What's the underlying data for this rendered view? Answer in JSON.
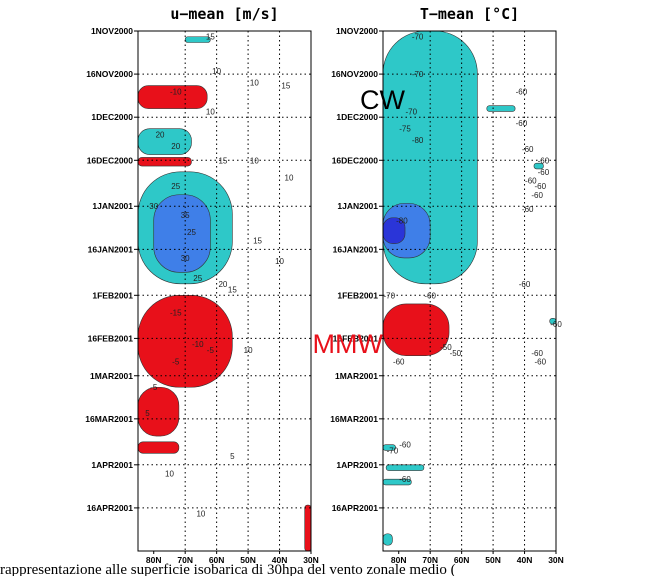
{
  "caption": "rappresentazione alle superficie isobarica di 30hpa del vento zonale medio (",
  "annotations": [
    {
      "label": "CW",
      "color": "#000000",
      "panel": 1,
      "date": "25NOV2000",
      "lat": 78
    },
    {
      "label": "MMW",
      "color": "#e8101a",
      "panel": 1,
      "date": "18FEB2001",
      "lat": 85
    }
  ],
  "chart_data": [
    {
      "type": "heatmap",
      "title": "u−mean [m/s]",
      "x_ticks": [
        "80N",
        "70N",
        "60N",
        "50N",
        "40N",
        "30N"
      ],
      "y_ticks": [
        "1NOV2000",
        "16NOV2000",
        "1DEC2000",
        "16DEC2000",
        "1JAN2001",
        "16JAN2001",
        "1FEB2001",
        "16FEB2001",
        "1MAR2001",
        "16MAR2001",
        "1APR2001",
        "16APR2001"
      ],
      "x_range": [
        85,
        30
      ],
      "y_range": [
        "1NOV2000",
        "1MAY2001"
      ],
      "grid": true,
      "fill_colors": {
        "easterly": "#e8101a",
        "westerly_20": "#2ec8c8",
        "westerly_30": "#3f7fe8",
        "westerly_40": "#2a35d8"
      },
      "filled_regions": [
        {
          "class": "westerly_20",
          "date_range": [
            "3NOV2000",
            "5NOV2000"
          ],
          "lat_range": [
            70,
            62
          ]
        },
        {
          "class": "easterly",
          "date_range": [
            "20NOV2000",
            "28NOV2000"
          ],
          "lat_range": [
            85,
            63
          ]
        },
        {
          "class": "westerly_20",
          "date_range": [
            "5DEC2000",
            "14DEC2000"
          ],
          "lat_range": [
            85,
            68
          ]
        },
        {
          "class": "easterly",
          "date_range": [
            "15DEC2000",
            "18DEC2000"
          ],
          "lat_range": [
            85,
            68
          ]
        },
        {
          "class": "westerly_20",
          "date_range": [
            "20DEC2000",
            "28JAN2001"
          ],
          "lat_range": [
            85,
            55
          ]
        },
        {
          "class": "westerly_30",
          "date_range": [
            "28DEC2000",
            "24JAN2001"
          ],
          "lat_range": [
            80,
            62
          ]
        },
        {
          "class": "easterly",
          "date_range": [
            "1FEB2001",
            "5MAR2001"
          ],
          "lat_range": [
            85,
            55
          ]
        },
        {
          "class": "easterly",
          "date_range": [
            "5MAR2001",
            "22MAR2001"
          ],
          "lat_range": [
            85,
            72
          ]
        },
        {
          "class": "easterly",
          "date_range": [
            "24MAR2001",
            "28MAR2001"
          ],
          "lat_range": [
            85,
            72
          ]
        },
        {
          "class": "easterly",
          "date_range": [
            "15APR2001",
            "1MAY2001"
          ],
          "lat_range": [
            32,
            30
          ]
        }
      ],
      "contour_labels": [
        {
          "label": "15",
          "date": "3NOV2000",
          "lat": 62
        },
        {
          "label": "10",
          "date": "15NOV2000",
          "lat": 60
        },
        {
          "label": "10",
          "date": "19NOV2000",
          "lat": 48
        },
        {
          "label": "15",
          "date": "20NOV2000",
          "lat": 38
        },
        {
          "label": "-10",
          "date": "22NOV2000",
          "lat": 73
        },
        {
          "label": "10",
          "date": "29NOV2000",
          "lat": 62
        },
        {
          "label": "20",
          "date": "7DEC2000",
          "lat": 78
        },
        {
          "label": "20",
          "date": "11DEC2000",
          "lat": 73
        },
        {
          "label": "15",
          "date": "16DEC2000",
          "lat": 58
        },
        {
          "label": "10",
          "date": "16DEC2000",
          "lat": 48
        },
        {
          "label": "10",
          "date": "22DEC2000",
          "lat": 37
        },
        {
          "label": "25",
          "date": "25DEC2000",
          "lat": 73
        },
        {
          "label": "30",
          "date": "1JAN2001",
          "lat": 80
        },
        {
          "label": "35",
          "date": "4JAN2001",
          "lat": 70
        },
        {
          "label": "25",
          "date": "10JAN2001",
          "lat": 68
        },
        {
          "label": "15",
          "date": "13JAN2001",
          "lat": 47
        },
        {
          "label": "10",
          "date": "20JAN2001",
          "lat": 40
        },
        {
          "label": "30",
          "date": "19JAN2001",
          "lat": 70
        },
        {
          "label": "25",
          "date": "26JAN2001",
          "lat": 66
        },
        {
          "label": "20",
          "date": "28JAN2001",
          "lat": 58
        },
        {
          "label": "15",
          "date": "30JAN2001",
          "lat": 55
        },
        {
          "label": "-15",
          "date": "7FEB2001",
          "lat": 73
        },
        {
          "label": "-10",
          "date": "18FEB2001",
          "lat": 66
        },
        {
          "label": "-5",
          "date": "20FEB2001",
          "lat": 62
        },
        {
          "label": "10",
          "date": "20FEB2001",
          "lat": 50
        },
        {
          "label": "-5",
          "date": "24FEB2001",
          "lat": 73
        },
        {
          "label": "-5",
          "date": "5MAR2001",
          "lat": 80
        },
        {
          "label": "5",
          "date": "14MAR2001",
          "lat": 82
        },
        {
          "label": "5",
          "date": "29MAR2001",
          "lat": 55
        },
        {
          "label": "10",
          "date": "4APR2001",
          "lat": 75
        },
        {
          "label": "10",
          "date": "18APR2001",
          "lat": 65
        }
      ]
    },
    {
      "type": "heatmap",
      "title": "T−mean [°C]",
      "x_ticks": [
        "80N",
        "70N",
        "60N",
        "50N",
        "40N",
        "30N"
      ],
      "y_ticks": [
        "1NOV2000",
        "16NOV2000",
        "1DEC2000",
        "16DEC2000",
        "1JAN2001",
        "16JAN2001",
        "1FEB2001",
        "16FEB2001",
        "1MAR2001",
        "16MAR2001",
        "1APR2001",
        "16APR2001"
      ],
      "x_range": [
        85,
        30
      ],
      "y_range": [
        "1NOV2000",
        "1MAY2001"
      ],
      "grid": true,
      "fill_colors": {
        "cold_70": "#2ec8c8",
        "cold_75": "#3f7fe8",
        "cold_80": "#2a35d8",
        "warm_50": "#e8101a"
      },
      "filled_regions": [
        {
          "class": "cold_70",
          "date_range": [
            "1NOV2000",
            "28JAN2001"
          ],
          "lat_range": [
            85,
            55
          ]
        },
        {
          "class": "cold_70",
          "date_range": [
            "27NOV2000",
            "29NOV2000"
          ],
          "lat_range": [
            52,
            43
          ]
        },
        {
          "class": "cold_75",
          "date_range": [
            "31DEC2000",
            "19JAN2001"
          ],
          "lat_range": [
            85,
            70
          ]
        },
        {
          "class": "cold_80",
          "date_range": [
            "5JAN2001",
            "14JAN2001"
          ],
          "lat_range": [
            85,
            78
          ]
        },
        {
          "class": "cold_70",
          "date_range": [
            "17DEC2000",
            "19DEC2000"
          ],
          "lat_range": [
            37,
            34
          ]
        },
        {
          "class": "cold_70",
          "date_range": [
            "9FEB2001",
            "11FEB2001"
          ],
          "lat_range": [
            32,
            30
          ]
        },
        {
          "class": "warm_50",
          "date_range": [
            "4FEB2001",
            "22FEB2001"
          ],
          "lat_range": [
            85,
            64
          ]
        },
        {
          "class": "cold_70",
          "date_range": [
            "25MAR2001",
            "27MAR2001"
          ],
          "lat_range": [
            85,
            81
          ]
        },
        {
          "class": "cold_70",
          "date_range": [
            "1APR2001",
            "3APR2001"
          ],
          "lat_range": [
            84,
            72
          ]
        },
        {
          "class": "cold_70",
          "date_range": [
            "6APR2001",
            "8APR2001"
          ],
          "lat_range": [
            85,
            76
          ]
        },
        {
          "class": "cold_70",
          "date_range": [
            "25APR2001",
            "29APR2001"
          ],
          "lat_range": [
            85,
            82
          ]
        }
      ],
      "contour_labels": [
        {
          "label": "-70",
          "date": "3NOV2000",
          "lat": 74
        },
        {
          "label": "-70",
          "date": "16NOV2000",
          "lat": 74
        },
        {
          "label": "-60",
          "date": "22NOV2000",
          "lat": 41
        },
        {
          "label": "-70",
          "date": "29NOV2000",
          "lat": 76
        },
        {
          "label": "-60",
          "date": "3DEC2000",
          "lat": 41
        },
        {
          "label": "-75",
          "date": "5DEC2000",
          "lat": 78
        },
        {
          "label": "-80",
          "date": "9DEC2000",
          "lat": 74
        },
        {
          "label": "-60",
          "date": "12DEC2000",
          "lat": 39
        },
        {
          "label": "-60",
          "date": "16DEC2000",
          "lat": 34
        },
        {
          "label": "-60",
          "date": "20DEC2000",
          "lat": 34
        },
        {
          "label": "-60",
          "date": "23DEC2000",
          "lat": 38
        },
        {
          "label": "-60",
          "date": "25DEC2000",
          "lat": 35
        },
        {
          "label": "-60",
          "date": "28DEC2000",
          "lat": 36
        },
        {
          "label": "-60",
          "date": "2JAN2001",
          "lat": 39
        },
        {
          "label": "-80",
          "date": "6JAN2001",
          "lat": 79
        },
        {
          "label": "-60",
          "date": "28JAN2001",
          "lat": 40
        },
        {
          "label": "-70",
          "date": "1FEB2001",
          "lat": 83
        },
        {
          "label": "-60",
          "date": "1FEB2001",
          "lat": 70
        },
        {
          "label": "-60",
          "date": "11FEB2001",
          "lat": 30
        },
        {
          "label": "-50",
          "date": "19FEB2001",
          "lat": 65
        },
        {
          "label": "-50",
          "date": "21FEB2001",
          "lat": 62
        },
        {
          "label": "-60",
          "date": "21FEB2001",
          "lat": 36
        },
        {
          "label": "-60",
          "date": "24FEB2001",
          "lat": 35
        },
        {
          "label": "-60",
          "date": "24FEB2001",
          "lat": 80
        },
        {
          "label": "-60",
          "date": "25MAR2001",
          "lat": 78
        },
        {
          "label": "-70",
          "date": "27MAR2001",
          "lat": 82
        },
        {
          "label": "-60",
          "date": "6APR2001",
          "lat": 78
        }
      ]
    }
  ]
}
